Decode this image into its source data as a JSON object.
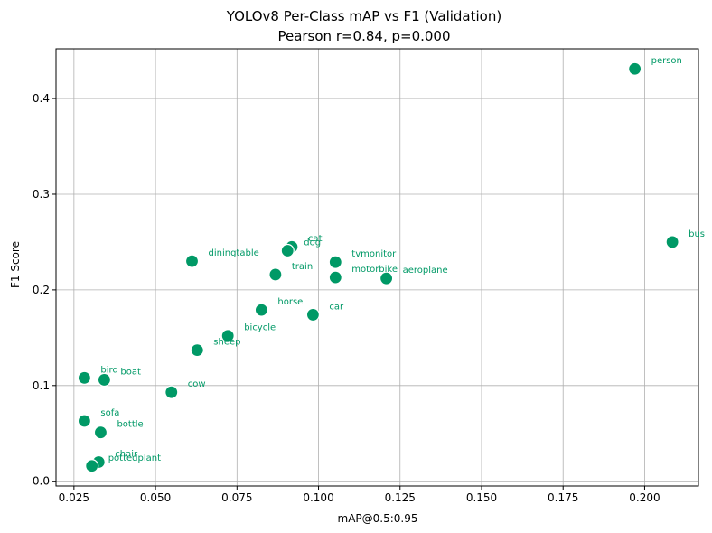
{
  "chart_data": {
    "type": "scatter",
    "title": "YOLOv8 Per-Class mAP vs F1 (Validation)",
    "subtitle": "Pearson r=0.84, p=0.000",
    "xlabel": "mAP@0.5:0.95",
    "ylabel": "F1 Score",
    "xlim": [
      0.0195,
      0.2165
    ],
    "ylim": [
      -0.005,
      0.452
    ],
    "x_ticks": [
      0.025,
      0.05,
      0.075,
      0.1,
      0.125,
      0.15,
      0.175,
      0.2
    ],
    "x_tick_labels": [
      "0.025",
      "0.050",
      "0.075",
      "0.100",
      "0.125",
      "0.150",
      "0.175",
      "0.200"
    ],
    "y_ticks": [
      0.0,
      0.1,
      0.2,
      0.3,
      0.4
    ],
    "y_tick_labels": [
      "0.0",
      "0.1",
      "0.2",
      "0.3",
      "0.4"
    ],
    "grid": true,
    "color": "#009966",
    "points": [
      {
        "label": "person",
        "x": 0.197,
        "y": 0.431
      },
      {
        "label": "bus",
        "x": 0.2085,
        "y": 0.25
      },
      {
        "label": "cat",
        "x": 0.0918,
        "y": 0.245
      },
      {
        "label": "dog",
        "x": 0.0905,
        "y": 0.241
      },
      {
        "label": "diningtable",
        "x": 0.0612,
        "y": 0.23
      },
      {
        "label": "tvmonitor",
        "x": 0.1052,
        "y": 0.229
      },
      {
        "label": "train",
        "x": 0.0868,
        "y": 0.216
      },
      {
        "label": "motorbike",
        "x": 0.1052,
        "y": 0.213
      },
      {
        "label": "aeroplane",
        "x": 0.1208,
        "y": 0.212
      },
      {
        "label": "horse",
        "x": 0.0825,
        "y": 0.179
      },
      {
        "label": "car",
        "x": 0.0983,
        "y": 0.174
      },
      {
        "label": "bicycle",
        "x": 0.0722,
        "y": 0.152
      },
      {
        "label": "sheep",
        "x": 0.0628,
        "y": 0.137
      },
      {
        "label": "bird",
        "x": 0.0282,
        "y": 0.108
      },
      {
        "label": "boat",
        "x": 0.0343,
        "y": 0.106
      },
      {
        "label": "cow",
        "x": 0.0549,
        "y": 0.093
      },
      {
        "label": "sofa",
        "x": 0.0282,
        "y": 0.063
      },
      {
        "label": "bottle",
        "x": 0.0332,
        "y": 0.051
      },
      {
        "label": "chair",
        "x": 0.0326,
        "y": 0.02
      },
      {
        "label": "pottedplant",
        "x": 0.0305,
        "y": 0.016
      }
    ]
  }
}
